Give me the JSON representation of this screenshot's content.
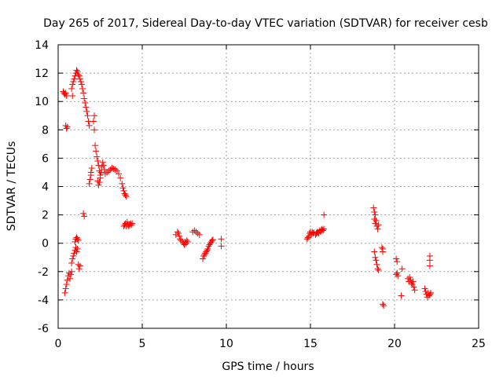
{
  "chart_data": {
    "type": "scatter",
    "title": "Day 265 of 2017, Sidereal Day-to-day VTEC variation (SDTVAR) for receiver cesb",
    "xlabel": "GPS time / hours",
    "ylabel": "SDTVAR / TECUs",
    "xlim": [
      0,
      25
    ],
    "ylim": [
      -6,
      14
    ],
    "xticks": [
      0,
      5,
      10,
      15,
      20,
      25
    ],
    "yticks": [
      -6,
      -4,
      -2,
      0,
      2,
      4,
      6,
      8,
      10,
      12,
      14
    ],
    "xtick_labels": [
      "0",
      "5",
      "10",
      "15",
      "20",
      "25"
    ],
    "ytick_labels": [
      "-6",
      "-4",
      "-2",
      "0",
      "2",
      "4",
      "6",
      "8",
      "10",
      "12",
      "14"
    ],
    "grid": true,
    "marker": "+",
    "color": "#ff0000",
    "series": [
      {
        "name": "SDTVAR",
        "points": [
          [
            0.3,
            10.7
          ],
          [
            0.35,
            10.6
          ],
          [
            0.4,
            10.5
          ],
          [
            0.45,
            10.6
          ],
          [
            0.5,
            10.4
          ],
          [
            0.45,
            8.3
          ],
          [
            0.5,
            8.1
          ],
          [
            0.55,
            8.2
          ],
          [
            0.4,
            -3.5
          ],
          [
            0.45,
            -3.2
          ],
          [
            0.5,
            -2.9
          ],
          [
            0.55,
            -2.6
          ],
          [
            0.6,
            -2.3
          ],
          [
            0.65,
            -2.1
          ],
          [
            0.7,
            -2.5
          ],
          [
            0.75,
            -2.2
          ],
          [
            0.8,
            -2.0
          ],
          [
            0.8,
            -1.4
          ],
          [
            0.85,
            -1.1
          ],
          [
            0.9,
            -0.9
          ],
          [
            0.95,
            -0.7
          ],
          [
            1.0,
            -0.5
          ],
          [
            1.05,
            -0.3
          ],
          [
            1.1,
            -0.6
          ],
          [
            1.15,
            -0.4
          ],
          [
            1.0,
            0.1
          ],
          [
            1.05,
            0.3
          ],
          [
            1.1,
            0.4
          ],
          [
            1.15,
            0.3
          ],
          [
            1.2,
            0.2
          ],
          [
            1.2,
            -1.5
          ],
          [
            1.25,
            -1.8
          ],
          [
            1.3,
            -1.6
          ],
          [
            0.8,
            10.9
          ],
          [
            0.85,
            11.2
          ],
          [
            0.9,
            11.4
          ],
          [
            0.95,
            11.6
          ],
          [
            1.0,
            11.8
          ],
          [
            1.05,
            12.0
          ],
          [
            1.1,
            12.2
          ],
          [
            1.15,
            12.1
          ],
          [
            1.2,
            11.9
          ],
          [
            1.25,
            11.8
          ],
          [
            1.3,
            11.6
          ],
          [
            1.35,
            11.4
          ],
          [
            1.4,
            11.2
          ],
          [
            1.45,
            10.9
          ],
          [
            1.5,
            10.6
          ],
          [
            1.55,
            10.2
          ],
          [
            1.6,
            9.9
          ],
          [
            1.65,
            9.6
          ],
          [
            1.7,
            9.3
          ],
          [
            1.75,
            9.0
          ],
          [
            1.8,
            8.6
          ],
          [
            1.85,
            8.3
          ],
          [
            0.85,
            10.4
          ],
          [
            1.5,
            2.1
          ],
          [
            1.55,
            1.9
          ],
          [
            1.85,
            4.2
          ],
          [
            1.9,
            4.5
          ],
          [
            1.95,
            5.0
          ],
          [
            2.0,
            5.3
          ],
          [
            1.95,
            4.8
          ],
          [
            2.1,
            8.6
          ],
          [
            2.15,
            9.0
          ],
          [
            2.15,
            8.0
          ],
          [
            2.2,
            6.9
          ],
          [
            2.25,
            6.5
          ],
          [
            2.3,
            6.1
          ],
          [
            2.35,
            5.8
          ],
          [
            2.4,
            5.5
          ],
          [
            2.45,
            5.1
          ],
          [
            2.5,
            4.8
          ],
          [
            2.35,
            4.4
          ],
          [
            2.4,
            4.1
          ],
          [
            2.45,
            4.3
          ],
          [
            2.5,
            4.6
          ],
          [
            2.55,
            5.0
          ],
          [
            2.6,
            5.4
          ],
          [
            2.65,
            5.7
          ],
          [
            2.7,
            5.5
          ],
          [
            2.75,
            5.2
          ],
          [
            2.8,
            4.9
          ],
          [
            2.9,
            5.0
          ],
          [
            3.0,
            5.1
          ],
          [
            3.1,
            5.2
          ],
          [
            3.2,
            5.3
          ],
          [
            3.3,
            5.25
          ],
          [
            3.4,
            5.2
          ],
          [
            3.5,
            5.1
          ],
          [
            3.6,
            4.9
          ],
          [
            3.7,
            4.6
          ],
          [
            3.8,
            4.2
          ],
          [
            3.85,
            3.9
          ],
          [
            3.9,
            3.7
          ],
          [
            3.95,
            3.5
          ],
          [
            4.0,
            3.4
          ],
          [
            4.05,
            3.3
          ],
          [
            3.9,
            1.2
          ],
          [
            3.95,
            1.3
          ],
          [
            4.0,
            1.4
          ],
          [
            4.05,
            1.2
          ],
          [
            4.1,
            1.5
          ],
          [
            4.15,
            1.3
          ],
          [
            4.2,
            1.2
          ],
          [
            4.25,
            1.3
          ],
          [
            4.3,
            1.4
          ],
          [
            4.35,
            1.3
          ],
          [
            4.4,
            1.4
          ],
          [
            7.0,
            0.6
          ],
          [
            7.1,
            0.8
          ],
          [
            7.15,
            0.7
          ],
          [
            7.2,
            0.5
          ],
          [
            7.25,
            0.3
          ],
          [
            7.3,
            0.2
          ],
          [
            7.4,
            0.1
          ],
          [
            7.45,
            0.0
          ],
          [
            7.5,
            -0.1
          ],
          [
            7.55,
            0.1
          ],
          [
            7.6,
            0.0
          ],
          [
            7.65,
            0.2
          ],
          [
            7.7,
            0.1
          ],
          [
            8.0,
            0.8
          ],
          [
            8.1,
            0.9
          ],
          [
            8.2,
            0.8
          ],
          [
            8.3,
            0.7
          ],
          [
            8.4,
            0.6
          ],
          [
            8.6,
            -1.1
          ],
          [
            8.65,
            -0.9
          ],
          [
            8.7,
            -0.8
          ],
          [
            8.75,
            -0.7
          ],
          [
            8.8,
            -0.6
          ],
          [
            8.85,
            -0.5
          ],
          [
            8.9,
            -0.4
          ],
          [
            8.95,
            -0.2
          ],
          [
            9.0,
            -0.1
          ],
          [
            9.05,
            0.0
          ],
          [
            9.1,
            0.1
          ],
          [
            9.15,
            0.2
          ],
          [
            9.2,
            0.25
          ],
          [
            9.7,
            0.3
          ],
          [
            9.7,
            -0.2
          ],
          [
            14.8,
            0.3
          ],
          [
            14.85,
            0.4
          ],
          [
            14.9,
            0.5
          ],
          [
            14.95,
            0.7
          ],
          [
            15.0,
            0.8
          ],
          [
            15.05,
            0.6
          ],
          [
            15.1,
            0.8
          ],
          [
            15.15,
            0.7
          ],
          [
            15.2,
            0.75
          ],
          [
            15.3,
            0.6
          ],
          [
            15.35,
            0.7
          ],
          [
            15.4,
            0.8
          ],
          [
            15.45,
            0.75
          ],
          [
            15.5,
            0.7
          ],
          [
            15.55,
            0.9
          ],
          [
            15.6,
            0.8
          ],
          [
            15.65,
            0.95
          ],
          [
            15.7,
            1.0
          ],
          [
            15.75,
            0.9
          ],
          [
            15.8,
            1.0
          ],
          [
            15.8,
            2.0
          ],
          [
            18.75,
            2.5
          ],
          [
            18.8,
            2.2
          ],
          [
            18.85,
            2.0
          ],
          [
            18.8,
            1.7
          ],
          [
            18.9,
            1.6
          ],
          [
            18.85,
            1.4
          ],
          [
            18.95,
            1.2
          ],
          [
            19.0,
            1.0
          ],
          [
            19.05,
            1.3
          ],
          [
            18.8,
            -0.6
          ],
          [
            18.85,
            -1.0
          ],
          [
            18.9,
            -1.2
          ],
          [
            18.95,
            -1.5
          ],
          [
            19.0,
            -1.8
          ],
          [
            19.05,
            -1.9
          ],
          [
            19.25,
            -0.3
          ],
          [
            19.3,
            -0.4
          ],
          [
            19.3,
            -0.6
          ],
          [
            19.3,
            -4.3
          ],
          [
            19.35,
            -4.4
          ],
          [
            20.1,
            -1.1
          ],
          [
            20.15,
            -1.3
          ],
          [
            20.1,
            -2.2
          ],
          [
            20.15,
            -2.1
          ],
          [
            20.2,
            -2.3
          ],
          [
            20.4,
            -3.7
          ],
          [
            20.45,
            -1.8
          ],
          [
            20.8,
            -2.5
          ],
          [
            20.85,
            -2.7
          ],
          [
            20.9,
            -2.4
          ],
          [
            20.95,
            -2.6
          ],
          [
            21.0,
            -2.8
          ],
          [
            21.05,
            -2.9
          ],
          [
            21.1,
            -2.7
          ],
          [
            21.15,
            -3.1
          ],
          [
            21.2,
            -3.3
          ],
          [
            21.8,
            -3.2
          ],
          [
            21.85,
            -3.4
          ],
          [
            21.9,
            -3.6
          ],
          [
            21.95,
            -3.8
          ],
          [
            22.0,
            -3.5
          ],
          [
            22.05,
            -3.7
          ],
          [
            22.1,
            -3.6
          ],
          [
            22.15,
            -3.5
          ],
          [
            22.1,
            -0.9
          ],
          [
            22.1,
            -1.2
          ],
          [
            22.1,
            -1.6
          ]
        ]
      }
    ]
  }
}
